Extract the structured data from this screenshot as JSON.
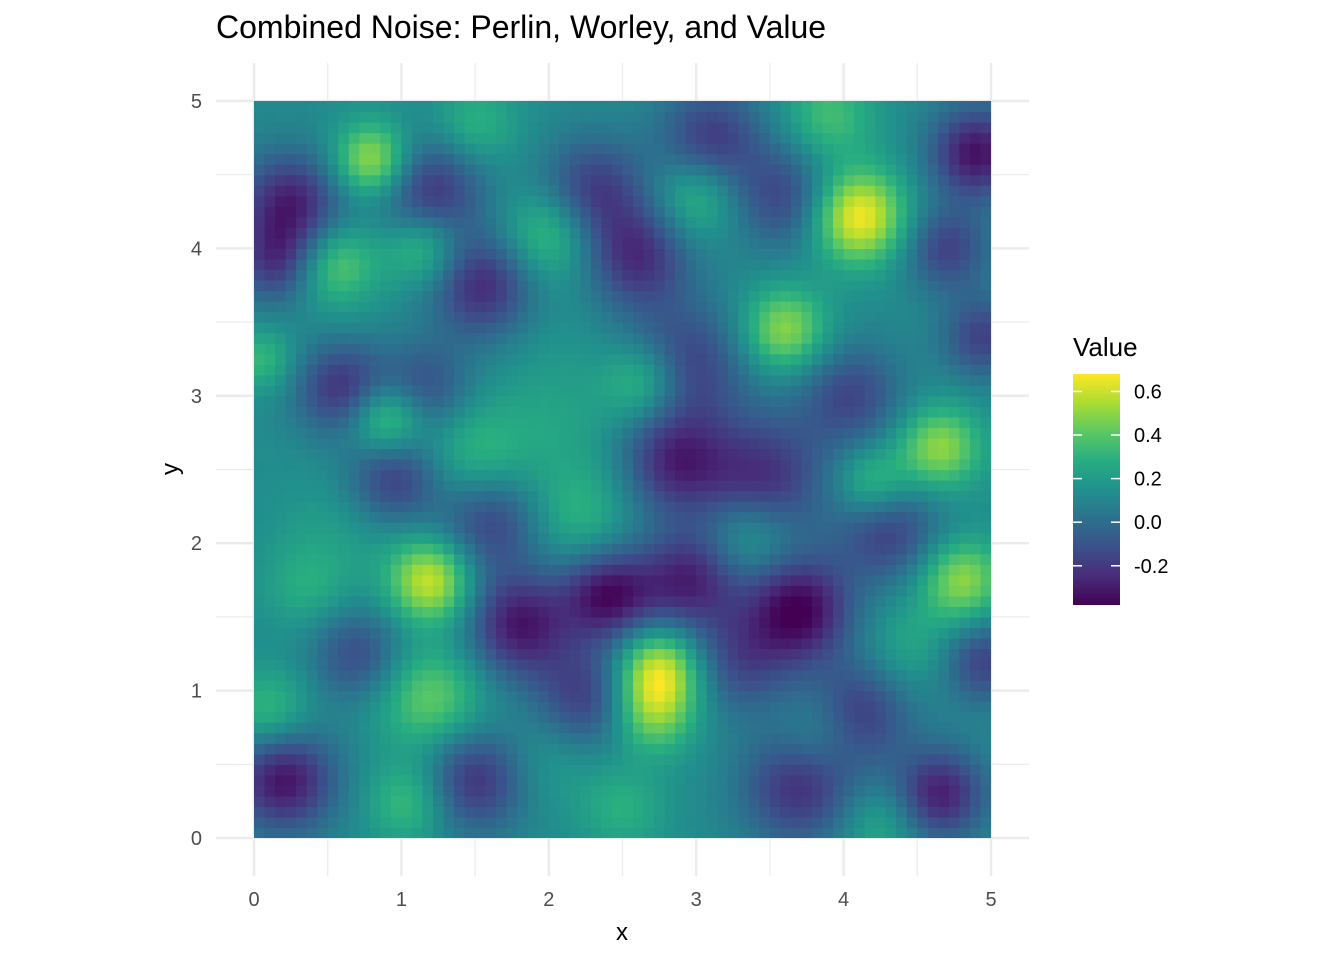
{
  "chart_data": {
    "type": "heatmap",
    "title": "Combined Noise: Perlin, Worley, and Value",
    "xlabel": "x",
    "ylabel": "y",
    "xlim": [
      0,
      5
    ],
    "ylim": [
      0,
      5
    ],
    "x_ticks": [
      "0",
      "1",
      "2",
      "3",
      "4",
      "5"
    ],
    "y_ticks": [
      "0",
      "1",
      "2",
      "3",
      "4",
      "5"
    ],
    "grid": true,
    "colormap": "viridis",
    "color_stops": [
      "#440154",
      "#472c7a",
      "#3b518b",
      "#2c718e",
      "#21908d",
      "#27ad81",
      "#5cc863",
      "#aadc32",
      "#fde725"
    ],
    "value_range": [
      -0.38,
      0.68
    ],
    "legend": {
      "title": "Value",
      "position": "right",
      "ticks": [
        "-0.2",
        "0.0",
        "0.2",
        "0.4",
        "0.6"
      ],
      "tick_values": [
        -0.2,
        0.0,
        0.2,
        0.4,
        0.6
      ]
    },
    "features": [
      {
        "x": 3.7,
        "y": 1.55,
        "v": -0.38,
        "s": 0.25
      },
      {
        "x": 0.2,
        "y": 0.4,
        "v": -0.34,
        "s": 0.25
      },
      {
        "x": 4.9,
        "y": 4.65,
        "v": -0.34,
        "s": 0.22
      },
      {
        "x": 1.8,
        "y": 1.45,
        "v": -0.32,
        "s": 0.25
      },
      {
        "x": 2.4,
        "y": 1.65,
        "v": -0.34,
        "s": 0.22
      },
      {
        "x": 2.95,
        "y": 1.75,
        "v": -0.28,
        "s": 0.25
      },
      {
        "x": 0.25,
        "y": 4.3,
        "v": -0.3,
        "s": 0.25
      },
      {
        "x": 4.65,
        "y": 0.3,
        "v": -0.3,
        "s": 0.22
      },
      {
        "x": 1.55,
        "y": 3.75,
        "v": -0.26,
        "s": 0.25
      },
      {
        "x": 2.9,
        "y": 3.2,
        "v": -0.22,
        "s": 0.3
      },
      {
        "x": 0.6,
        "y": 3.05,
        "v": -0.24,
        "s": 0.22
      },
      {
        "x": 2.6,
        "y": 3.95,
        "v": -0.24,
        "s": 0.25
      },
      {
        "x": 2.85,
        "y": 2.55,
        "v": -0.24,
        "s": 0.25
      },
      {
        "x": 3.45,
        "y": 2.45,
        "v": -0.24,
        "s": 0.3
      },
      {
        "x": 1.5,
        "y": 0.4,
        "v": -0.24,
        "s": 0.25
      },
      {
        "x": 3.7,
        "y": 0.35,
        "v": -0.24,
        "s": 0.28
      },
      {
        "x": 1.2,
        "y": 4.4,
        "v": -0.22,
        "s": 0.25
      },
      {
        "x": 2.3,
        "y": 4.4,
        "v": -0.2,
        "s": 0.25
      },
      {
        "x": 3.1,
        "y": 4.75,
        "v": -0.2,
        "s": 0.25
      },
      {
        "x": 0.95,
        "y": 2.45,
        "v": -0.2,
        "s": 0.22
      },
      {
        "x": 2.25,
        "y": 0.95,
        "v": -0.2,
        "s": 0.25
      },
      {
        "x": 4.1,
        "y": 0.85,
        "v": -0.2,
        "s": 0.25
      },
      {
        "x": 4.3,
        "y": 2.1,
        "v": -0.2,
        "s": 0.25
      },
      {
        "x": 4.7,
        "y": 4.0,
        "v": -0.18,
        "s": 0.2
      },
      {
        "x": 4.95,
        "y": 3.4,
        "v": -0.18,
        "s": 0.2
      },
      {
        "x": 1.6,
        "y": 2.15,
        "v": -0.18,
        "s": 0.25
      },
      {
        "x": 0.15,
        "y": 3.9,
        "v": -0.18,
        "s": 0.2
      },
      {
        "x": 3.6,
        "y": 4.35,
        "v": -0.16,
        "s": 0.25
      },
      {
        "x": 4.05,
        "y": 3.0,
        "v": -0.16,
        "s": 0.25
      },
      {
        "x": 0.7,
        "y": 1.25,
        "v": -0.14,
        "s": 0.22
      },
      {
        "x": 1.15,
        "y": 3.05,
        "v": -0.14,
        "s": 0.22
      },
      {
        "x": 4.95,
        "y": 1.2,
        "v": -0.18,
        "s": 0.2
      },
      {
        "x": 3.3,
        "y": 1.2,
        "v": -0.14,
        "s": 0.25
      },
      {
        "x": 4.1,
        "y": 4.22,
        "v": 0.68,
        "s": 0.22
      },
      {
        "x": 1.2,
        "y": 1.75,
        "v": 0.6,
        "s": 0.2
      },
      {
        "x": 2.75,
        "y": 1.15,
        "v": 0.6,
        "s": 0.2
      },
      {
        "x": 2.7,
        "y": 0.85,
        "v": 0.45,
        "s": 0.2
      },
      {
        "x": 0.8,
        "y": 4.6,
        "v": 0.55,
        "s": 0.18
      },
      {
        "x": 4.8,
        "y": 1.75,
        "v": 0.5,
        "s": 0.2
      },
      {
        "x": 4.65,
        "y": 2.65,
        "v": 0.5,
        "s": 0.2
      },
      {
        "x": 0.9,
        "y": 2.85,
        "v": 0.5,
        "s": 0.18
      },
      {
        "x": 3.6,
        "y": 3.45,
        "v": 0.5,
        "s": 0.2
      },
      {
        "x": 2.65,
        "y": 3.1,
        "v": 0.45,
        "s": 0.2
      },
      {
        "x": 0.55,
        "y": 3.9,
        "v": 0.42,
        "s": 0.2
      },
      {
        "x": 1.2,
        "y": 0.95,
        "v": 0.42,
        "s": 0.25
      },
      {
        "x": 1.15,
        "y": 4.0,
        "v": 0.38,
        "s": 0.18
      },
      {
        "x": 2.0,
        "y": 4.1,
        "v": 0.38,
        "s": 0.22
      },
      {
        "x": 4.2,
        "y": 2.4,
        "v": 0.4,
        "s": 0.18
      },
      {
        "x": 0.1,
        "y": 0.85,
        "v": 0.35,
        "s": 0.2
      },
      {
        "x": 1.05,
        "y": 0.25,
        "v": 0.35,
        "s": 0.2
      },
      {
        "x": 3.0,
        "y": 4.35,
        "v": 0.35,
        "s": 0.2
      },
      {
        "x": 3.35,
        "y": 2.05,
        "v": 0.32,
        "s": 0.2
      },
      {
        "x": 1.5,
        "y": 2.6,
        "v": 0.32,
        "s": 0.25
      },
      {
        "x": 0.05,
        "y": 3.25,
        "v": 0.32,
        "s": 0.15
      },
      {
        "x": 2.2,
        "y": 2.2,
        "v": 0.3,
        "s": 0.25
      },
      {
        "x": 3.9,
        "y": 4.9,
        "v": 0.35,
        "s": 0.22
      },
      {
        "x": 3.85,
        "y": 0.7,
        "v": 0.3,
        "s": 0.2
      },
      {
        "x": 2.05,
        "y": 2.85,
        "v": 0.22,
        "s": 0.3
      },
      {
        "x": 1.5,
        "y": 4.85,
        "v": 0.3,
        "s": 0.2
      },
      {
        "x": 2.5,
        "y": 0.2,
        "v": 0.28,
        "s": 0.2
      },
      {
        "x": 4.25,
        "y": 0.1,
        "v": 0.28,
        "s": 0.2
      },
      {
        "x": 0.55,
        "y": 2.05,
        "v": 0.2,
        "s": 0.3
      },
      {
        "x": 2.05,
        "y": 3.5,
        "v": 0.15,
        "s": 0.3
      },
      {
        "x": 4.45,
        "y": 1.3,
        "v": 0.25,
        "s": 0.22
      },
      {
        "x": 0.35,
        "y": 1.7,
        "v": 0.25,
        "s": 0.2
      },
      {
        "x": 2.0,
        "y": 0.55,
        "v": 0.22,
        "s": 0.25
      }
    ]
  }
}
